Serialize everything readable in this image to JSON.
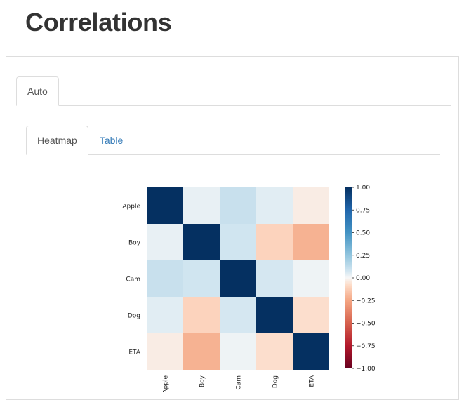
{
  "page": {
    "title": "Correlations"
  },
  "outer_tabs": [
    {
      "label": "Auto",
      "active": true
    }
  ],
  "inner_tabs": [
    {
      "label": "Heatmap",
      "active": true
    },
    {
      "label": "Table",
      "active": false
    }
  ],
  "colors": {
    "link": "#337ab7",
    "border": "#dddddd",
    "title": "#333333"
  },
  "chart_data": {
    "type": "heatmap",
    "row_labels": [
      "Apple",
      "Boy",
      "Cam",
      "Dog",
      "ETA"
    ],
    "col_labels": [
      "Apple",
      "Boy",
      "Cam",
      "Dog",
      "ETA"
    ],
    "values": [
      [
        1.0,
        0.02,
        0.08,
        0.03,
        -0.02
      ],
      [
        0.02,
        1.0,
        0.06,
        -0.08,
        -0.18
      ],
      [
        0.08,
        0.06,
        1.0,
        0.05,
        0.01
      ],
      [
        0.03,
        -0.08,
        0.05,
        1.0,
        -0.05
      ],
      [
        -0.02,
        -0.18,
        0.01,
        -0.05,
        1.0
      ]
    ],
    "vmin": -1.0,
    "vmax": 1.0,
    "colormap": "RdBu",
    "colorbar_ticks": [
      "1.00",
      "0.75",
      "0.50",
      "0.25",
      "0.00",
      "−0.25",
      "−0.50",
      "−0.75",
      "−1.00"
    ]
  }
}
